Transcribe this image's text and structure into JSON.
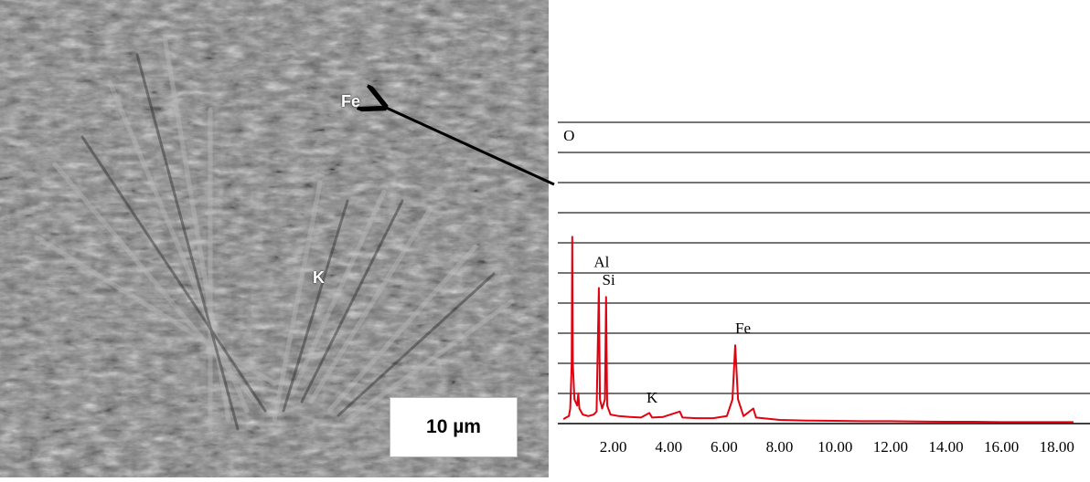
{
  "sem_image": {
    "labels": {
      "fe": "Fe",
      "k": "K"
    },
    "scale_bar": "10 µm"
  },
  "chart_data": {
    "type": "line",
    "title": "",
    "xlabel": "",
    "ylabel": "",
    "xlim": [
      0,
      18.8
    ],
    "ylim": [
      0,
      100
    ],
    "x_ticks": [
      "2.00",
      "4.00",
      "6.00",
      "8.00",
      "10.00",
      "12.00",
      "14.00",
      "16.00",
      "18.00"
    ],
    "x_tick_values": [
      2,
      4,
      6,
      8,
      10,
      12,
      14,
      16,
      18
    ],
    "gridlines_y": [
      10,
      20,
      30,
      40,
      50,
      60,
      70,
      80,
      90,
      100
    ],
    "grid": true,
    "series": [
      {
        "color": "#e3000f",
        "points": [
          [
            0.2,
            1.5
          ],
          [
            0.3,
            2
          ],
          [
            0.4,
            2.5
          ],
          [
            0.45,
            5
          ],
          [
            0.5,
            20
          ],
          [
            0.52,
            62
          ],
          [
            0.54,
            20
          ],
          [
            0.6,
            8
          ],
          [
            0.7,
            6
          ],
          [
            0.74,
            10
          ],
          [
            0.78,
            5
          ],
          [
            0.9,
            3
          ],
          [
            1.1,
            2.5
          ],
          [
            1.3,
            3
          ],
          [
            1.4,
            4
          ],
          [
            1.48,
            45
          ],
          [
            1.52,
            8
          ],
          [
            1.6,
            5
          ],
          [
            1.7,
            8
          ],
          [
            1.74,
            42
          ],
          [
            1.78,
            6
          ],
          [
            1.9,
            3
          ],
          [
            2.2,
            2.5
          ],
          [
            2.6,
            2.2
          ],
          [
            3.0,
            2
          ],
          [
            3.3,
            3.5
          ],
          [
            3.4,
            2
          ],
          [
            3.8,
            2.2
          ],
          [
            4.4,
            4
          ],
          [
            4.5,
            2
          ],
          [
            5.0,
            1.8
          ],
          [
            5.6,
            1.8
          ],
          [
            6.1,
            2.5
          ],
          [
            6.3,
            8
          ],
          [
            6.4,
            26
          ],
          [
            6.5,
            8
          ],
          [
            6.7,
            2.5
          ],
          [
            7.05,
            5
          ],
          [
            7.15,
            2
          ],
          [
            8.0,
            1.2
          ],
          [
            9.0,
            1.0
          ],
          [
            10.0,
            0.9
          ],
          [
            11.0,
            0.8
          ],
          [
            12.0,
            0.8
          ],
          [
            13.0,
            0.7
          ],
          [
            14.0,
            0.6
          ],
          [
            15.0,
            0.6
          ],
          [
            16.0,
            0.5
          ],
          [
            17.0,
            0.5
          ],
          [
            18.0,
            0.5
          ],
          [
            18.6,
            0.5
          ]
        ]
      }
    ],
    "peak_labels": [
      {
        "text": "O",
        "x": 0.2,
        "y": 94
      },
      {
        "text": "Al",
        "x": 1.3,
        "y": 52
      },
      {
        "text": "Si",
        "x": 1.6,
        "y": 46
      },
      {
        "text": "Fe",
        "x": 6.4,
        "y": 30
      },
      {
        "text": "K",
        "x": 3.2,
        "y": 7
      }
    ]
  }
}
